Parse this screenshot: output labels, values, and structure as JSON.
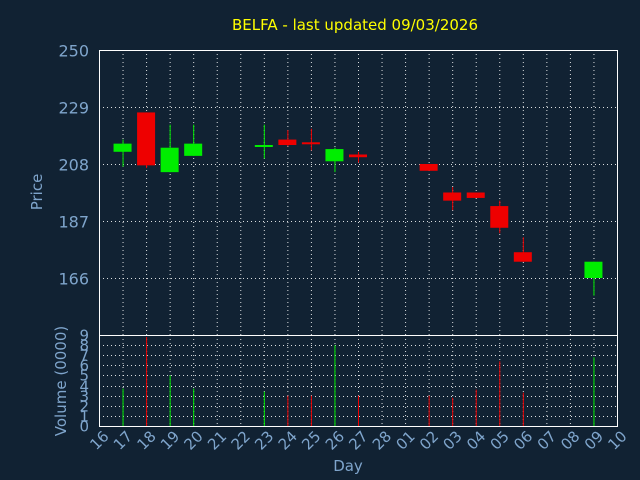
{
  "chart_data": {
    "type": "candlestick",
    "title": "BELFA - last updated 09/03/2026",
    "colors": {
      "background": "#112233",
      "up": "#00ee00",
      "down": "#ee0000",
      "title": "#ffff00",
      "axis_text": "#7fa5cc",
      "grid": "#ffffff"
    },
    "price_panel": {
      "ylabel": "Price",
      "ylim": [
        145,
        250
      ],
      "yticks": [
        250,
        229,
        208,
        187,
        166
      ]
    },
    "volume_panel": {
      "ylabel": "Volume (0000)",
      "ylim": [
        0,
        9
      ],
      "yticks": [
        0,
        1,
        2,
        3,
        4,
        5,
        6,
        7,
        8,
        9
      ]
    },
    "xlabel": "Day",
    "x_ticks": [
      "16",
      "17",
      "18",
      "19",
      "20",
      "21",
      "22",
      "23",
      "24",
      "25",
      "26",
      "27",
      "28",
      "01",
      "02",
      "03",
      "04",
      "05",
      "06",
      "07",
      "08",
      "09",
      "10"
    ],
    "candles": [
      {
        "day": "17",
        "open": 212.5,
        "high": 217.0,
        "low": 207.0,
        "close": 215.5,
        "volume": 3.7
      },
      {
        "day": "18",
        "open": 227.0,
        "high": 227.0,
        "low": 206.5,
        "close": 207.5,
        "volume": 8.8
      },
      {
        "day": "19",
        "open": 205.0,
        "high": 222.5,
        "low": 205.0,
        "close": 214.0,
        "volume": 5.0
      },
      {
        "day": "20",
        "open": 211.0,
        "high": 222.5,
        "low": 211.0,
        "close": 215.5,
        "volume": 3.7
      },
      {
        "day": "23",
        "open": 214.5,
        "high": 222.5,
        "low": 210.0,
        "close": 215.0,
        "volume": 3.4
      },
      {
        "day": "24",
        "open": 217.0,
        "high": 220.5,
        "low": 214.5,
        "close": 215.0,
        "volume": 3.0
      },
      {
        "day": "25",
        "open": 216.0,
        "high": 221.0,
        "low": 213.0,
        "close": 215.5,
        "volume": 3.0
      },
      {
        "day": "26",
        "open": 209.0,
        "high": 214.0,
        "low": 205.0,
        "close": 213.5,
        "volume": 8.0
      },
      {
        "day": "27",
        "open": 211.5,
        "high": 212.5,
        "low": 208.5,
        "close": 210.5,
        "volume": 3.0
      },
      {
        "day": "02",
        "open": 208.0,
        "high": 208.0,
        "low": 205.5,
        "close": 205.5,
        "volume": 3.0
      },
      {
        "day": "03",
        "open": 197.5,
        "high": 199.5,
        "low": 191.0,
        "close": 194.5,
        "volume": 2.8
      },
      {
        "day": "04",
        "open": 197.5,
        "high": 197.5,
        "low": 195.5,
        "close": 195.5,
        "volume": 3.6
      },
      {
        "day": "05",
        "open": 192.5,
        "high": 194.5,
        "low": 182.5,
        "close": 184.5,
        "volume": 6.4
      },
      {
        "day": "06",
        "open": 175.5,
        "high": 181.0,
        "low": 172.0,
        "close": 172.0,
        "volume": 3.3
      },
      {
        "day": "09",
        "open": 166.0,
        "high": 172.0,
        "low": 159.5,
        "close": 172.0,
        "volume": 6.8
      }
    ]
  }
}
